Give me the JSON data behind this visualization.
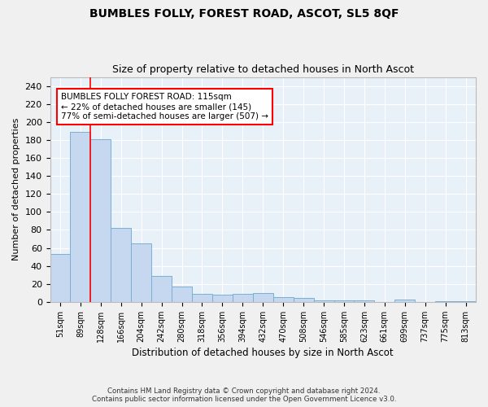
{
  "title": "BUMBLES FOLLY, FOREST ROAD, ASCOT, SL5 8QF",
  "subtitle": "Size of property relative to detached houses in North Ascot",
  "xlabel": "Distribution of detached houses by size in North Ascot",
  "ylabel": "Number of detached properties",
  "bar_color": "#c5d8f0",
  "bar_edge_color": "#7aafd4",
  "background_color": "#e8f0f8",
  "grid_color": "#ffffff",
  "fig_facecolor": "#f0f0f0",
  "categories": [
    "51sqm",
    "89sqm",
    "128sqm",
    "166sqm",
    "204sqm",
    "242sqm",
    "280sqm",
    "318sqm",
    "356sqm",
    "394sqm",
    "432sqm",
    "470sqm",
    "508sqm",
    "546sqm",
    "585sqm",
    "623sqm",
    "661sqm",
    "699sqm",
    "737sqm",
    "775sqm",
    "813sqm"
  ],
  "values": [
    53,
    189,
    181,
    82,
    65,
    29,
    17,
    9,
    8,
    9,
    10,
    5,
    4,
    2,
    2,
    2,
    0,
    3,
    0,
    1,
    1
  ],
  "ylim": [
    0,
    250
  ],
  "yticks": [
    0,
    20,
    40,
    60,
    80,
    100,
    120,
    140,
    160,
    180,
    200,
    220,
    240
  ],
  "property_line_x": 1.5,
  "annotation_text": "BUMBLES FOLLY FOREST ROAD: 115sqm\n← 22% of detached houses are smaller (145)\n77% of semi-detached houses are larger (507) →",
  "footer1": "Contains HM Land Registry data © Crown copyright and database right 2024.",
  "footer2": "Contains public sector information licensed under the Open Government Licence v3.0."
}
